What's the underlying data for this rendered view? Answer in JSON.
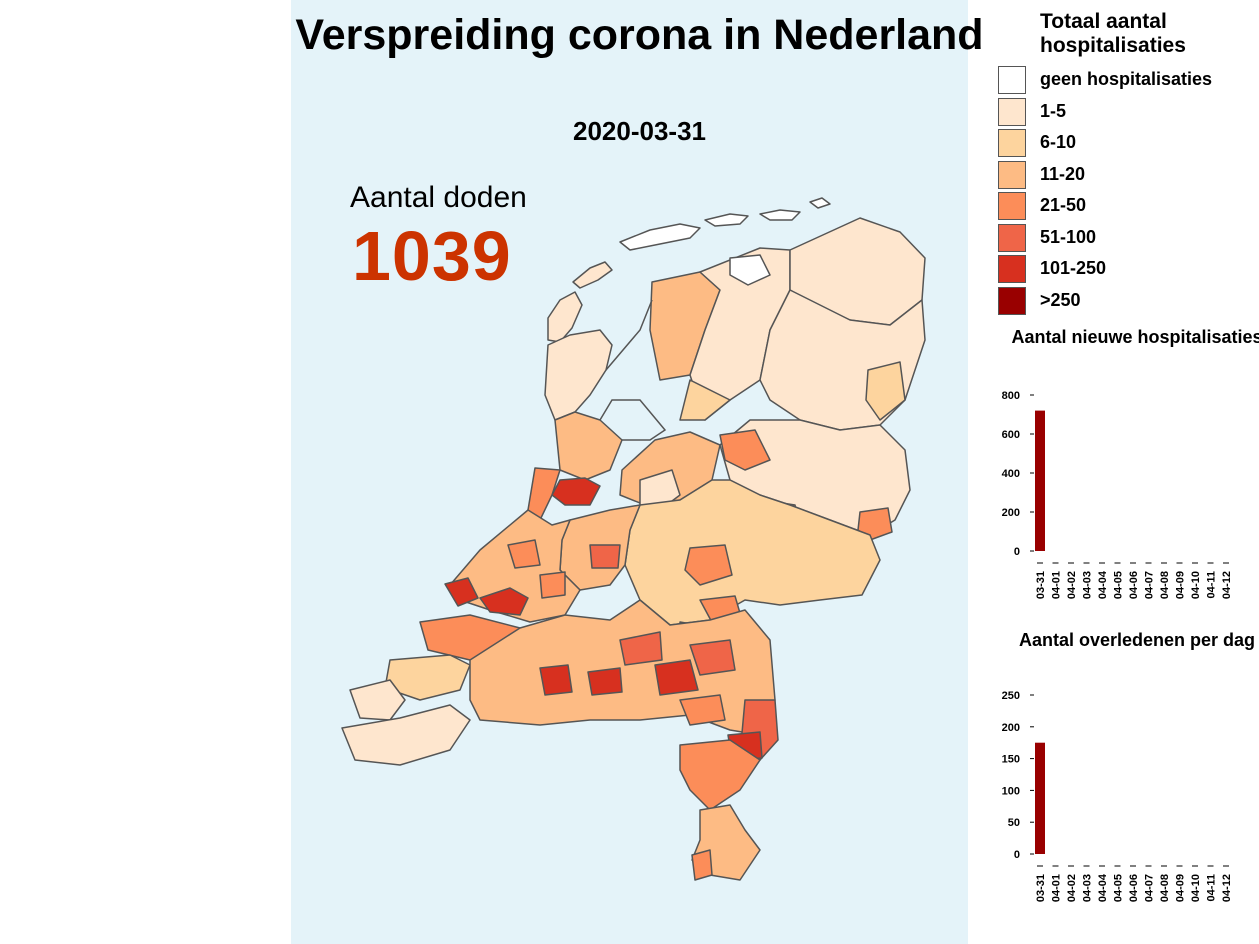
{
  "title": "Verspreiding corona in Nederland",
  "date": "2020-03-31",
  "deaths": {
    "label": "Aantal doden",
    "value": "1039"
  },
  "legend": {
    "title": "Totaal aantal hospitalisaties",
    "items": [
      {
        "label": "geen hospitalisaties",
        "color": "#ffffff"
      },
      {
        "label": "1-5",
        "color": "#fee6ce"
      },
      {
        "label": "6-10",
        "color": "#fdd49e"
      },
      {
        "label": "11-20",
        "color": "#fdbb84"
      },
      {
        "label": "21-50",
        "color": "#fc8d59"
      },
      {
        "label": "51-100",
        "color": "#ef6548"
      },
      {
        "label": "101-250",
        "color": "#d7301f"
      },
      {
        "label": ">250",
        "color": "#990000"
      }
    ]
  },
  "chart_data": [
    {
      "type": "bar",
      "title": "Aantal nieuwe hospitalisaties",
      "categories": [
        "03-31",
        "04-01",
        "04-02",
        "04-03",
        "04-04",
        "04-05",
        "04-06",
        "04-07",
        "04-08",
        "04-09",
        "04-10",
        "04-11",
        "04-12"
      ],
      "values": [
        720,
        0,
        0,
        0,
        0,
        0,
        0,
        0,
        0,
        0,
        0,
        0,
        0
      ],
      "ylim": [
        0,
        800
      ],
      "yticks": [
        0,
        200,
        400,
        600,
        800
      ],
      "bar_color": "#990000"
    },
    {
      "type": "bar",
      "title": "Aantal overledenen per dag",
      "categories": [
        "03-31",
        "04-01",
        "04-02",
        "04-03",
        "04-04",
        "04-05",
        "04-06",
        "04-07",
        "04-08",
        "04-09",
        "04-10",
        "04-11",
        "04-12"
      ],
      "values": [
        175,
        0,
        0,
        0,
        0,
        0,
        0,
        0,
        0,
        0,
        0,
        0,
        0
      ],
      "ylim": [
        0,
        250
      ],
      "yticks": [
        0,
        50,
        100,
        150,
        200,
        250
      ],
      "bar_color": "#990000"
    }
  ]
}
